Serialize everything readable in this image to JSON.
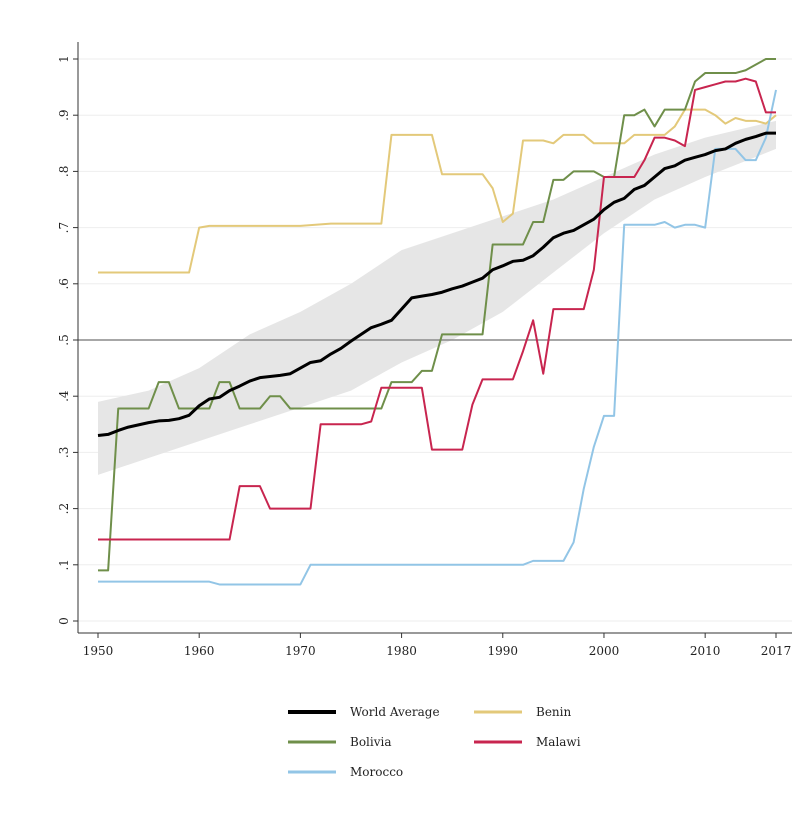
{
  "chart_data": {
    "type": "line",
    "title": "",
    "xlabel": "",
    "ylabel": "",
    "xlim": [
      1950,
      2017
    ],
    "ylim": [
      0,
      1
    ],
    "x_ticks": [
      1950,
      1960,
      1970,
      1980,
      1990,
      2000,
      2010,
      2017
    ],
    "x_tick_labels": [
      "1950",
      "1960",
      "1970",
      "1980",
      "1990",
      "2000",
      "2010",
      "2017"
    ],
    "y_ticks": [
      0,
      0.1,
      0.2,
      0.3,
      0.4,
      0.5,
      0.6,
      0.7,
      0.8,
      0.9,
      1
    ],
    "y_tick_labels": [
      "0",
      ".1",
      ".2",
      ".3",
      ".4",
      ".5",
      ".6",
      ".7",
      ".8",
      ".9",
      "1"
    ],
    "grid": true,
    "reference_line": 0.5,
    "legend_position": "bottom",
    "band": {
      "x": [
        1950,
        1955,
        1960,
        1965,
        1970,
        1975,
        1980,
        1985,
        1990,
        1995,
        2000,
        2005,
        2010,
        2017
      ],
      "lower": [
        0.26,
        0.29,
        0.32,
        0.35,
        0.38,
        0.41,
        0.46,
        0.5,
        0.55,
        0.62,
        0.69,
        0.75,
        0.79,
        0.84
      ],
      "upper": [
        0.39,
        0.41,
        0.45,
        0.51,
        0.55,
        0.6,
        0.66,
        0.69,
        0.72,
        0.75,
        0.79,
        0.83,
        0.86,
        0.89
      ],
      "color": "#e6e6e6"
    },
    "series": [
      {
        "name": "World Average",
        "color": "#000000",
        "width": 3,
        "x": [
          1950,
          1951,
          1952,
          1953,
          1954,
          1955,
          1956,
          1957,
          1958,
          1959,
          1960,
          1961,
          1962,
          1963,
          1964,
          1965,
          1966,
          1967,
          1968,
          1969,
          1970,
          1971,
          1972,
          1973,
          1974,
          1975,
          1976,
          1977,
          1978,
          1979,
          1980,
          1981,
          1982,
          1983,
          1984,
          1985,
          1986,
          1987,
          1988,
          1989,
          1990,
          1991,
          1992,
          1993,
          1994,
          1995,
          1996,
          1997,
          1998,
          1999,
          2000,
          2001,
          2002,
          2003,
          2004,
          2005,
          2006,
          2007,
          2008,
          2009,
          2010,
          2011,
          2012,
          2013,
          2014,
          2015,
          2016,
          2017
        ],
        "y": [
          0.33,
          0.332,
          0.339,
          0.345,
          0.349,
          0.353,
          0.356,
          0.357,
          0.36,
          0.366,
          0.383,
          0.395,
          0.398,
          0.41,
          0.418,
          0.427,
          0.433,
          0.435,
          0.437,
          0.44,
          0.45,
          0.46,
          0.463,
          0.475,
          0.485,
          0.498,
          0.51,
          0.522,
          0.528,
          0.535,
          0.555,
          0.575,
          0.578,
          0.581,
          0.585,
          0.591,
          0.596,
          0.603,
          0.61,
          0.625,
          0.632,
          0.64,
          0.642,
          0.65,
          0.665,
          0.682,
          0.69,
          0.695,
          0.705,
          0.715,
          0.732,
          0.745,
          0.752,
          0.768,
          0.775,
          0.79,
          0.805,
          0.81,
          0.82,
          0.825,
          0.83,
          0.837,
          0.84,
          0.85,
          0.857,
          0.862,
          0.868,
          0.868
        ]
      },
      {
        "name": "Benin",
        "color": "#e3c97a",
        "width": 2,
        "x": [
          1950,
          1959,
          1960,
          1961,
          1970,
          1973,
          1978,
          1979,
          1980,
          1981,
          1982,
          1983,
          1984,
          1985,
          1986,
          1987,
          1988,
          1989,
          1990,
          1991,
          1992,
          1993,
          1994,
          1995,
          1996,
          1997,
          1998,
          1999,
          2000,
          2001,
          2002,
          2003,
          2004,
          2005,
          2006,
          2007,
          2008,
          2009,
          2010,
          2011,
          2012,
          2013,
          2014,
          2015,
          2016,
          2017
        ],
        "y": [
          0.62,
          0.62,
          0.7,
          0.703,
          0.703,
          0.707,
          0.707,
          0.865,
          0.865,
          0.865,
          0.865,
          0.865,
          0.795,
          0.795,
          0.795,
          0.795,
          0.795,
          0.77,
          0.71,
          0.725,
          0.855,
          0.855,
          0.855,
          0.85,
          0.865,
          0.865,
          0.865,
          0.85,
          0.85,
          0.85,
          0.85,
          0.865,
          0.865,
          0.865,
          0.865,
          0.88,
          0.91,
          0.91,
          0.91,
          0.9,
          0.885,
          0.895,
          0.89,
          0.89,
          0.885,
          0.9
        ]
      },
      {
        "name": "Bolivia",
        "color": "#6f8f4a",
        "width": 2,
        "x": [
          1950,
          1951,
          1952,
          1953,
          1954,
          1955,
          1956,
          1957,
          1958,
          1959,
          1960,
          1961,
          1962,
          1963,
          1964,
          1965,
          1966,
          1967,
          1968,
          1969,
          1978,
          1979,
          1980,
          1981,
          1982,
          1983,
          1984,
          1985,
          1986,
          1987,
          1988,
          1989,
          1990,
          1991,
          1992,
          1993,
          1994,
          1995,
          1996,
          1997,
          1998,
          1999,
          2000,
          2001,
          2002,
          2003,
          2004,
          2005,
          2006,
          2007,
          2008,
          2009,
          2010,
          2011,
          2012,
          2013,
          2014,
          2015,
          2016,
          2017
        ],
        "y": [
          0.09,
          0.09,
          0.378,
          0.378,
          0.378,
          0.378,
          0.425,
          0.425,
          0.378,
          0.378,
          0.378,
          0.378,
          0.425,
          0.425,
          0.378,
          0.378,
          0.378,
          0.4,
          0.4,
          0.378,
          0.378,
          0.425,
          0.425,
          0.425,
          0.445,
          0.445,
          0.51,
          0.51,
          0.51,
          0.51,
          0.51,
          0.67,
          0.67,
          0.67,
          0.67,
          0.71,
          0.71,
          0.785,
          0.785,
          0.8,
          0.8,
          0.8,
          0.79,
          0.79,
          0.9,
          0.9,
          0.91,
          0.88,
          0.91,
          0.91,
          0.91,
          0.96,
          0.975,
          0.975,
          0.975,
          0.975,
          0.98,
          0.99,
          1,
          1
        ]
      },
      {
        "name": "Malawi",
        "color": "#c8254f",
        "width": 2,
        "x": [
          1950,
          1963,
          1964,
          1965,
          1966,
          1967,
          1968,
          1969,
          1970,
          1971,
          1972,
          1973,
          1974,
          1975,
          1976,
          1977,
          1978,
          1979,
          1980,
          1981,
          1982,
          1983,
          1984,
          1985,
          1986,
          1987,
          1988,
          1989,
          1990,
          1991,
          1992,
          1993,
          1994,
          1995,
          1996,
          1997,
          1998,
          1999,
          2000,
          2001,
          2002,
          2003,
          2004,
          2005,
          2006,
          2007,
          2008,
          2009,
          2010,
          2011,
          2012,
          2013,
          2014,
          2015,
          2016,
          2017
        ],
        "y": [
          0.145,
          0.145,
          0.24,
          0.24,
          0.24,
          0.2,
          0.2,
          0.2,
          0.2,
          0.2,
          0.35,
          0.35,
          0.35,
          0.35,
          0.35,
          0.355,
          0.415,
          0.415,
          0.415,
          0.415,
          0.415,
          0.305,
          0.305,
          0.305,
          0.305,
          0.385,
          0.43,
          0.43,
          0.43,
          0.43,
          0.48,
          0.535,
          0.44,
          0.555,
          0.555,
          0.555,
          0.555,
          0.625,
          0.79,
          0.79,
          0.79,
          0.79,
          0.82,
          0.86,
          0.86,
          0.855,
          0.845,
          0.945,
          0.95,
          0.955,
          0.96,
          0.96,
          0.965,
          0.96,
          0.905,
          0.905
        ]
      },
      {
        "name": "Morocco",
        "color": "#92c5e6",
        "width": 2,
        "x": [
          1950,
          1961,
          1962,
          1969,
          1970,
          1971,
          1972,
          1980,
          1981,
          1992,
          1993,
          1994,
          1995,
          1996,
          1997,
          1998,
          1999,
          2000,
          2001,
          2002,
          2003,
          2004,
          2005,
          2006,
          2007,
          2008,
          2009,
          2010,
          2011,
          2012,
          2013,
          2014,
          2015,
          2016,
          2017
        ],
        "y": [
          0.07,
          0.07,
          0.065,
          0.065,
          0.065,
          0.1,
          0.1,
          0.1,
          0.1,
          0.1,
          0.107,
          0.107,
          0.107,
          0.107,
          0.14,
          0.235,
          0.31,
          0.365,
          0.365,
          0.705,
          0.705,
          0.705,
          0.705,
          0.71,
          0.7,
          0.705,
          0.705,
          0.7,
          0.84,
          0.84,
          0.84,
          0.82,
          0.82,
          0.86,
          0.945
        ]
      }
    ]
  },
  "legend": {
    "items": [
      {
        "label": "World Average",
        "series": 0
      },
      {
        "label": "Benin",
        "series": 1
      },
      {
        "label": "Bolivia",
        "series": 2
      },
      {
        "label": "Malawi",
        "series": 3
      },
      {
        "label": "Morocco",
        "series": 4
      }
    ]
  }
}
